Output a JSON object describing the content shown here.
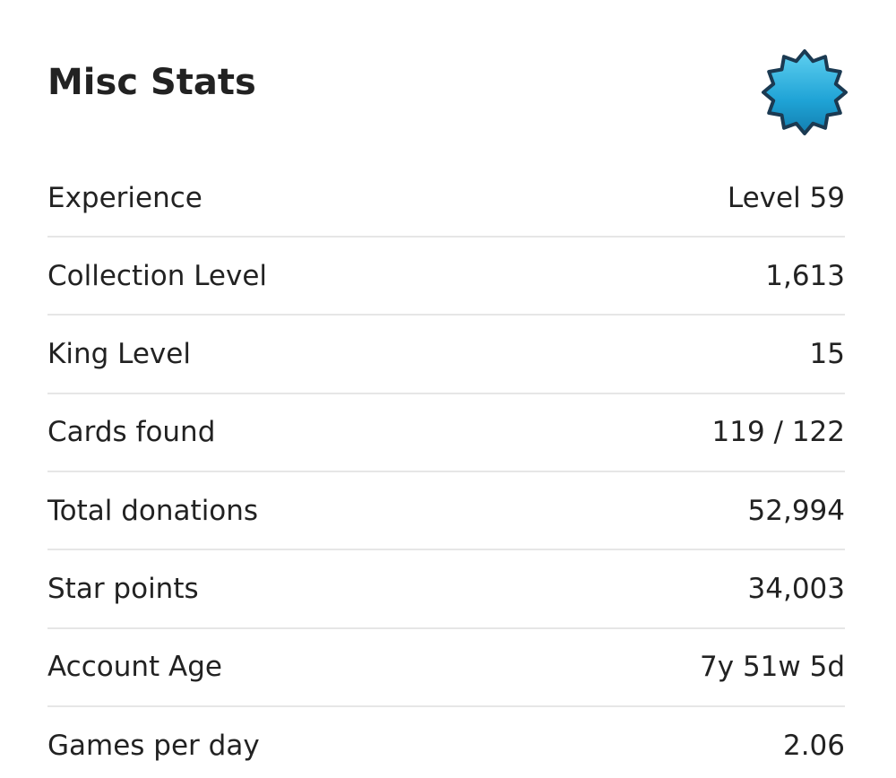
{
  "header": {
    "title": "Misc Stats"
  },
  "rows": [
    {
      "label": "Experience",
      "value": "Level 59"
    },
    {
      "label": "Collection Level",
      "value": "1,613"
    },
    {
      "label": "King Level",
      "value": "15"
    },
    {
      "label": "Cards found",
      "value": "119 / 122"
    },
    {
      "label": "Total donations",
      "value": "52,994"
    },
    {
      "label": "Star points",
      "value": "34,003"
    },
    {
      "label": "Account Age",
      "value": "7y 51w 5d"
    },
    {
      "label": "Games per day",
      "value": "2.06"
    }
  ]
}
